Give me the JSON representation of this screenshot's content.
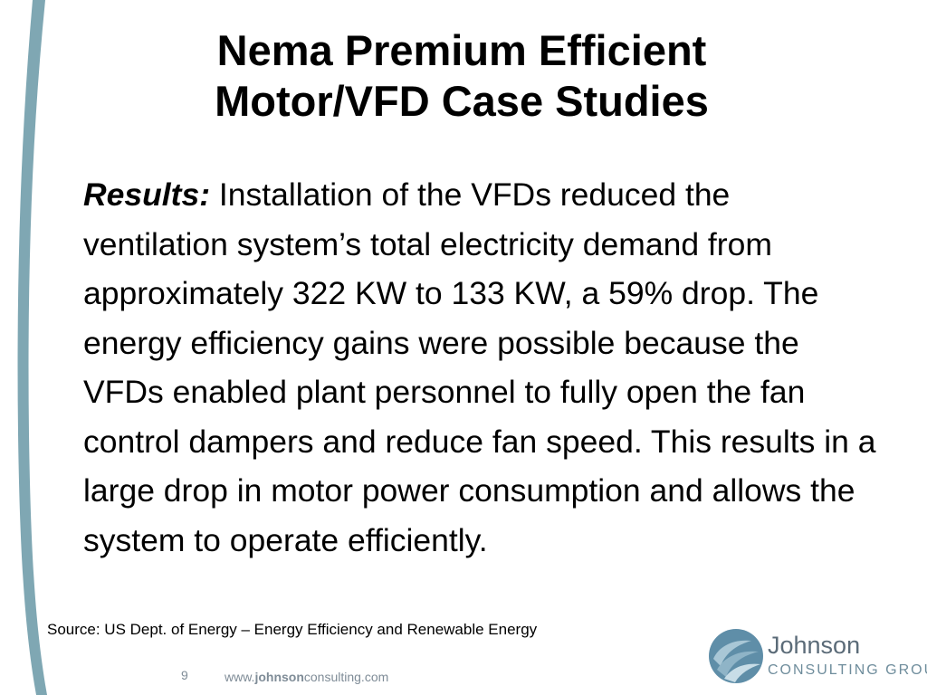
{
  "slide": {
    "title_line1": "Nema Premium Efficient",
    "title_line2": "Motor/VFD Case Studies",
    "results_label": "Results:",
    "results_text": " Installation of the VFDs reduced the ventilation system’s total electricity demand from approximately 322 KW to 133 KW, a 59% drop. The energy efficiency gains were possible because the VFDs enabled plant personnel to fully open the fan control dampers and reduce fan speed. This results in a large drop in motor power consumption and allows the system to operate efficiently.",
    "source": "Source: US Dept. of Energy – Energy Efficiency and Renewable Energy",
    "page_number": "9",
    "website_prefix": "www.",
    "website_bold": "johnson",
    "website_suffix": "consulting.com"
  },
  "logo": {
    "name": "Johnson",
    "subtitle": "CONSULTING GROUP"
  },
  "colors": {
    "accent_bar": "#7fa7b3",
    "logo_blue": "#5f8ea8",
    "footer_gray": "#7f8c97"
  }
}
